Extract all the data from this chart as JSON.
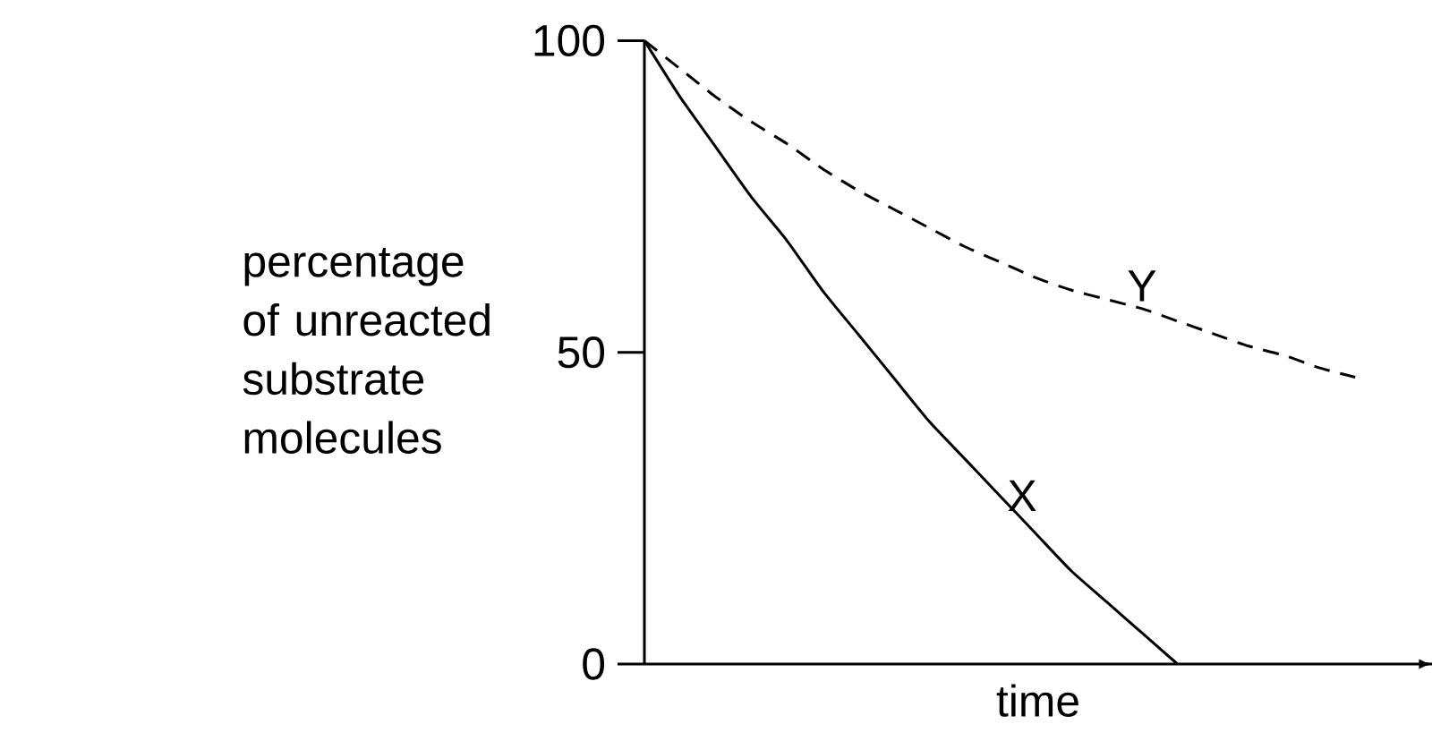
{
  "chart_data": {
    "type": "line",
    "ylabel": "percentage of unreacted substrate molecules",
    "xlabel": "time",
    "categories": [
      null,
      null,
      null,
      null,
      null,
      null,
      null,
      null,
      null,
      null,
      null,
      null,
      null,
      null,
      null,
      null,
      null,
      null,
      null,
      null,
      null
    ],
    "ylim": [
      0,
      100
    ],
    "yticks": [
      0,
      50,
      100
    ],
    "tick_labels": "y",
    "series": [
      {
        "name": "X",
        "color": "#000000",
        "line_style": "solid",
        "values": [
          100,
          91,
          83,
          75,
          68,
          60,
          53,
          46,
          39,
          33,
          27,
          21,
          15,
          10,
          5,
          0,
          null,
          null,
          null,
          null,
          null
        ]
      },
      {
        "name": "Y",
        "color": "#000000",
        "line_style": "dashed",
        "values": [
          100,
          95.5,
          91,
          87,
          83.5,
          79.5,
          76,
          73,
          70,
          67,
          64.5,
          62,
          60,
          58.5,
          57,
          55,
          53,
          51,
          49.5,
          47.5,
          46
        ]
      }
    ]
  }
}
